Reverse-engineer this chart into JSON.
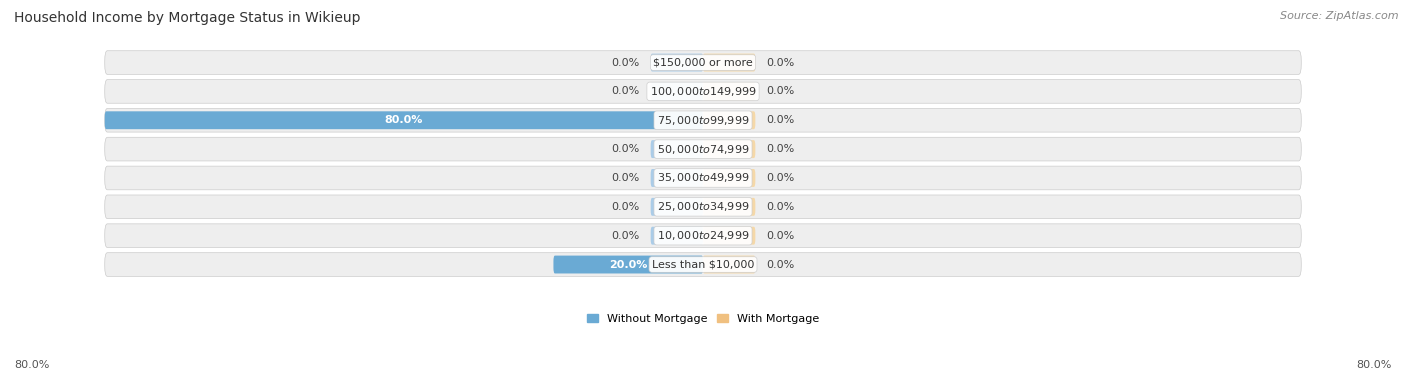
{
  "title": "Household Income by Mortgage Status in Wikieup",
  "source": "Source: ZipAtlas.com",
  "categories": [
    "Less than $10,000",
    "$10,000 to $24,999",
    "$25,000 to $34,999",
    "$35,000 to $49,999",
    "$50,000 to $74,999",
    "$75,000 to $99,999",
    "$100,000 to $149,999",
    "$150,000 or more"
  ],
  "without_mortgage": [
    20.0,
    0.0,
    0.0,
    0.0,
    0.0,
    80.0,
    0.0,
    0.0
  ],
  "with_mortgage": [
    0.0,
    0.0,
    0.0,
    0.0,
    0.0,
    0.0,
    0.0,
    0.0
  ],
  "color_without": "#6aaad4",
  "color_with": "#f0c080",
  "color_without_stub": "#aacce8",
  "color_with_stub": "#f5d8a8",
  "row_bg": "#eeeeee",
  "xlim_abs": 80.0,
  "stub_size": 7.0,
  "legend_labels": [
    "Without Mortgage",
    "With Mortgage"
  ],
  "title_fontsize": 10,
  "source_fontsize": 8,
  "label_fontsize": 8,
  "category_fontsize": 8,
  "axis_label_left": "80.0%",
  "axis_label_right": "80.0%"
}
